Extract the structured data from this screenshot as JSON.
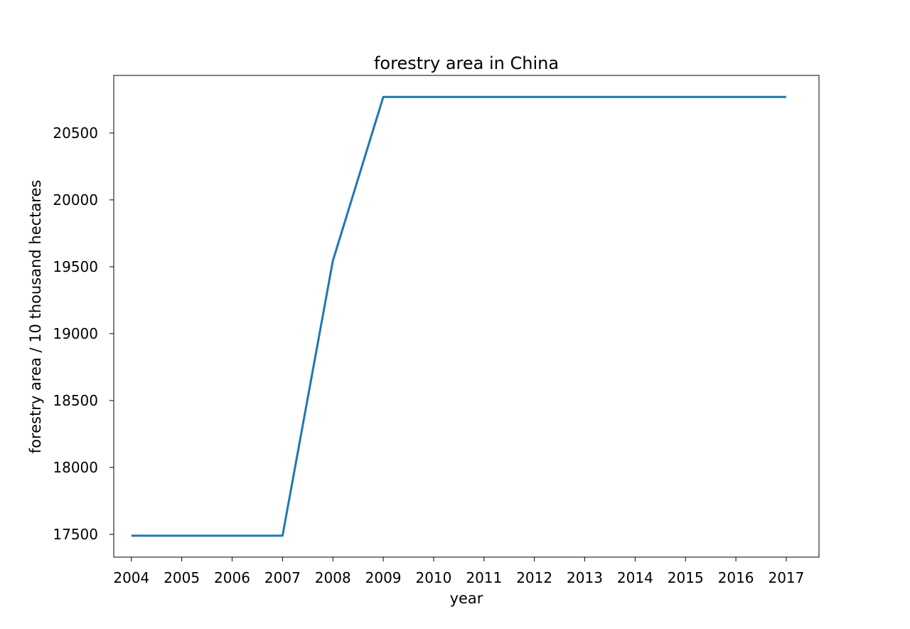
{
  "chart_data": {
    "type": "line",
    "title": "forestry area in China",
    "xlabel": "year",
    "ylabel": "forestry area / 10 thousand hectares",
    "x": [
      2004,
      2005,
      2006,
      2007,
      2008,
      2009,
      2010,
      2011,
      2012,
      2013,
      2014,
      2015,
      2016,
      2017
    ],
    "series": [
      {
        "values": [
          17490,
          17490,
          17490,
          17490,
          19545,
          20769,
          20769,
          20769,
          20769,
          20769,
          20769,
          20769,
          20769,
          20769
        ],
        "color": "#1f77b4"
      }
    ],
    "ylim": [
      17330,
      20930
    ],
    "xlim": [
      2003.65,
      2017.65
    ],
    "yticks": [
      17500,
      18000,
      18500,
      19000,
      19500,
      20000,
      20500
    ],
    "xticks": [
      2004,
      2005,
      2006,
      2007,
      2008,
      2009,
      2010,
      2011,
      2012,
      2013,
      2014,
      2015,
      2016,
      2017
    ],
    "grid": false,
    "legend": "none"
  }
}
